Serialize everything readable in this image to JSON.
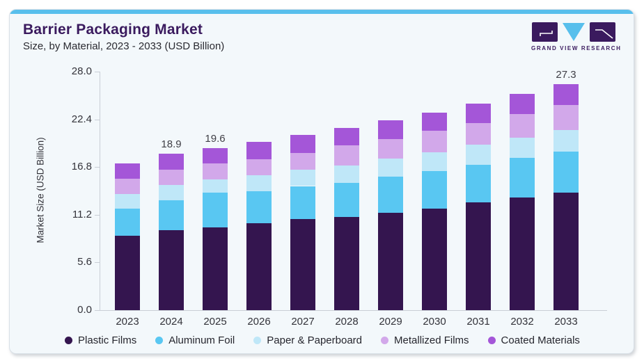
{
  "card": {
    "title": "Barrier Packaging Market",
    "subtitle": "Size, by Material, 2023 - 2033 (USD Billion)"
  },
  "logo": {
    "text": "GRAND VIEW RESEARCH",
    "dark_color": "#3A1A5E",
    "blue_color": "#58BFEC"
  },
  "chart_data": {
    "type": "bar",
    "stacked": true,
    "title": "Barrier Packaging Market",
    "subtitle": "Size, by Material, 2023 - 2033 (USD Billion)",
    "xlabel": "",
    "ylabel": "Market Size (USD Billion)",
    "ylim": [
      0,
      28
    ],
    "grid": false,
    "legend_position": "bottom",
    "yticks": [
      {
        "value": 0,
        "label": "0.0"
      },
      {
        "value": 5.6,
        "label": "5.6"
      },
      {
        "value": 11.2,
        "label": "11.2"
      },
      {
        "value": 16.8,
        "label": "16.8"
      },
      {
        "value": 22.4,
        "label": "22.4"
      },
      {
        "value": 28,
        "label": "28.0"
      }
    ],
    "categories": [
      "2023",
      "2024",
      "2025",
      "2026",
      "2027",
      "2028",
      "2029",
      "2030",
      "2031",
      "2032",
      "2033"
    ],
    "series": [
      {
        "name": "Plastic Films",
        "color": "#34154F",
        "values": [
          9.0,
          9.7,
          10.0,
          10.5,
          11.0,
          11.3,
          11.8,
          12.3,
          13.0,
          13.6,
          14.2
        ]
      },
      {
        "name": "Aluminum Foil",
        "color": "#59C7F2",
        "values": [
          3.3,
          3.6,
          4.2,
          3.9,
          4.0,
          4.1,
          4.3,
          4.5,
          4.6,
          4.8,
          5.0
        ]
      },
      {
        "name": "Paper & Paperboard",
        "color": "#BFE7F8",
        "values": [
          1.7,
          1.8,
          1.6,
          1.9,
          2.0,
          2.1,
          2.2,
          2.3,
          2.4,
          2.4,
          2.6
        ]
      },
      {
        "name": "Metallized Films",
        "color": "#D2A8EA",
        "values": [
          1.9,
          1.9,
          1.9,
          1.9,
          2.0,
          2.4,
          2.4,
          2.6,
          2.6,
          2.9,
          3.0
        ]
      },
      {
        "name": "Coated Materials",
        "color": "#A456D8",
        "values": [
          1.8,
          1.9,
          1.9,
          2.1,
          2.2,
          2.1,
          2.2,
          2.2,
          2.4,
          2.4,
          2.5
        ]
      }
    ],
    "totals": [
      17.7,
      18.9,
      19.6,
      20.3,
      21.2,
      22.0,
      22.9,
      23.9,
      25.0,
      26.1,
      27.3
    ],
    "total_labels": {
      "2024": "18.9",
      "2025": "19.6",
      "2033": "27.3"
    }
  }
}
